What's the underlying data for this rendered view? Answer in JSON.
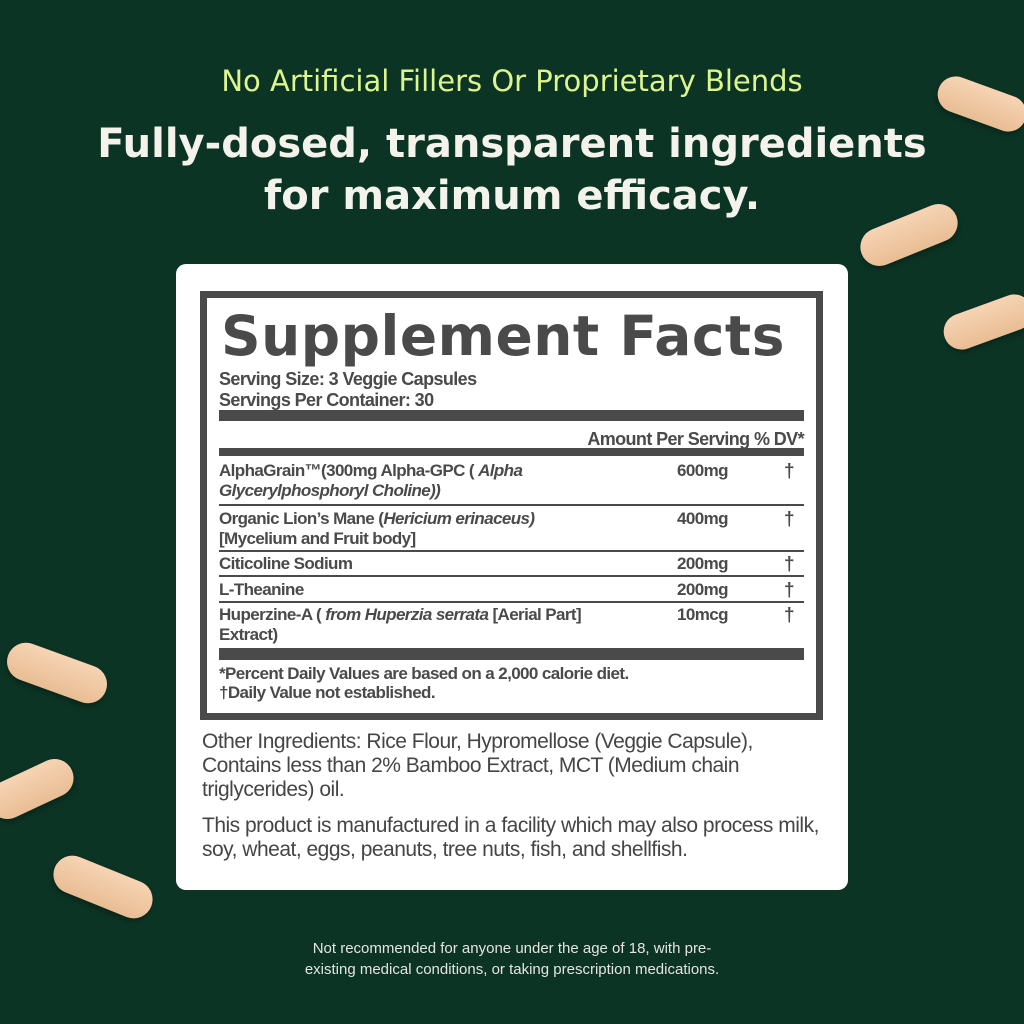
{
  "tagline": "No Artificial Fillers Or Proprietary Blends",
  "headline": {
    "line1": "Fully-dosed, transparent ingredients",
    "line2": "for maximum efficacy."
  },
  "label": {
    "title": "Supplement Facts",
    "serving_size": "Serving Size: 3 Veggie Capsules",
    "servings_per_container": "Servings Per Container: 30",
    "header_amount": "Amount Per Serving",
    "header_dv": "% DV*",
    "rows": [
      {
        "name_a": "AlphaGrain™(300mg Alpha-GPC ( ",
        "name_i": "Alpha Glycerylphosphoryl Choline))",
        "name_b": "",
        "amount": "600mg",
        "dv": "†"
      },
      {
        "name_a": "Organic Lion’s Mane (",
        "name_i": "Hericium erinaceus)",
        "name_b": " [Mycelium and Fruit body]",
        "amount": "400mg",
        "dv": "†"
      },
      {
        "name_a": "Citicoline Sodium",
        "name_i": "",
        "name_b": "",
        "amount": "200mg",
        "dv": "†"
      },
      {
        "name_a": "L-Theanine",
        "name_i": "",
        "name_b": "",
        "amount": "200mg",
        "dv": "†"
      },
      {
        "name_a": "Huperzine-A ( ",
        "name_i": "from Huperzia serrata",
        "name_b": " [Aerial Part] Extract)",
        "amount": "10mcg",
        "dv": "†"
      }
    ],
    "footnote1": "*Percent Daily Values are based on a 2,000 calorie diet.",
    "footnote2": "†Daily Value not established."
  },
  "other_ingredients": "Other Ingredients: Rice Flour, Hypromellose (Veggie Capsule), Contains less than 2% Bamboo Extract, MCT (Medium chain triglycerides) oil.",
  "facility_note": "This product is manufactured in a facility which may also process milk, soy, wheat, eggs, peanuts, tree nuts, fish, and shellfish.",
  "disclaimer": {
    "line1": "Not recommended for anyone under the age of 18, with pre-",
    "line2": "existing medical conditions, or taking prescription medications."
  },
  "colors": {
    "background": "#0c3424",
    "tagline": "#dcf58c",
    "capsule": "#f0c9a5",
    "label_ink": "#4a4a4a"
  }
}
